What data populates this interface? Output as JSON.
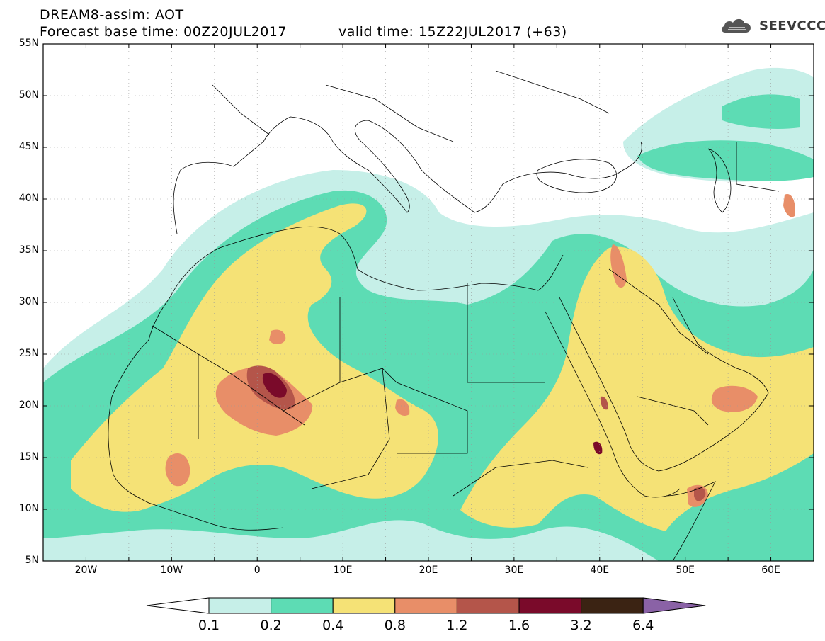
{
  "header": {
    "title_line1": "DREAM8-assim: AOT",
    "title_line2": "Forecast base time: 00Z20JUL2017",
    "valid_time": "valid time: 15Z22JUL2017 (+63)"
  },
  "logo": {
    "text": "SEEVCCC",
    "icon": "cloud-icon"
  },
  "map": {
    "lat_labels": [
      "55N",
      "50N",
      "45N",
      "40N",
      "35N",
      "30N",
      "25N",
      "20N",
      "15N",
      "10N",
      "5N"
    ],
    "lon_labels": [
      "20W",
      "10W",
      "0",
      "10E",
      "20E",
      "30E",
      "40E",
      "50E",
      "60E"
    ],
    "extent": {
      "lon_min": -25,
      "lon_max": 65,
      "lat_min": 5,
      "lat_max": 55
    }
  },
  "colorbar": {
    "labels": [
      "0.1",
      "0.2",
      "0.4",
      "0.8",
      "1.2",
      "1.6",
      "3.2",
      "6.4"
    ],
    "colors": [
      "#ffffff",
      "#c6efe8",
      "#5ddcb4",
      "#f5e276",
      "#e88e68",
      "#b4554a",
      "#7a0a2a",
      "#3b2313",
      "#8a62a6"
    ]
  },
  "colors": {
    "level1": "#c6efe8",
    "level2": "#5ddcb4",
    "level3": "#f5e276",
    "level4": "#e88e68",
    "level5": "#b4554a",
    "level6": "#7a0a2a"
  }
}
